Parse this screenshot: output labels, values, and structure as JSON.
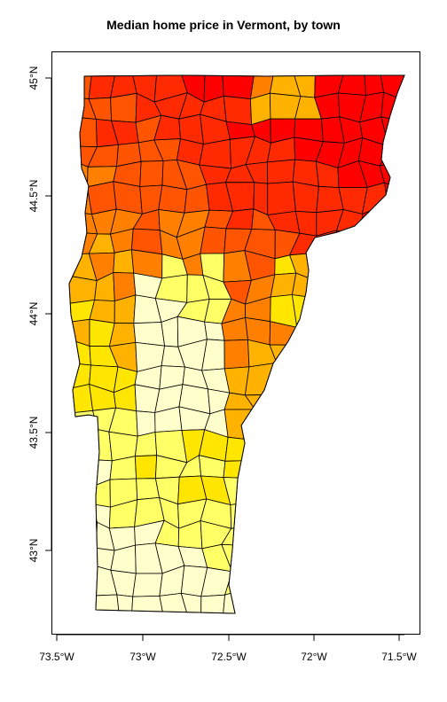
{
  "title": "Median home price in Vermont, by town",
  "x_ticks": [
    "73.5°W",
    "73°W",
    "72.5°W",
    "72°W",
    "71.5°W"
  ],
  "y_ticks": [
    "45°N",
    "44.5°N",
    "44°N",
    "43.5°N",
    "43°N"
  ],
  "palette": [
    "#FFFFCC",
    "#FFFF66",
    "#FFE600",
    "#FFB300",
    "#FF8000",
    "#FF5500",
    "#FF2A00",
    "#FF0000"
  ],
  "chart_data": {
    "type": "choropleth",
    "x_axis": {
      "lon_min": -73.53,
      "lon_max": -71.43,
      "ticks": [
        -73.5,
        -73.0,
        -72.5,
        -72.0,
        -71.5
      ]
    },
    "y_axis": {
      "lat_min": 42.65,
      "lat_max": 45.12,
      "ticks": [
        45.0,
        44.5,
        44.0,
        43.5,
        43.0
      ]
    },
    "color_scale": "heat (yellow = low, red = high)"
  }
}
